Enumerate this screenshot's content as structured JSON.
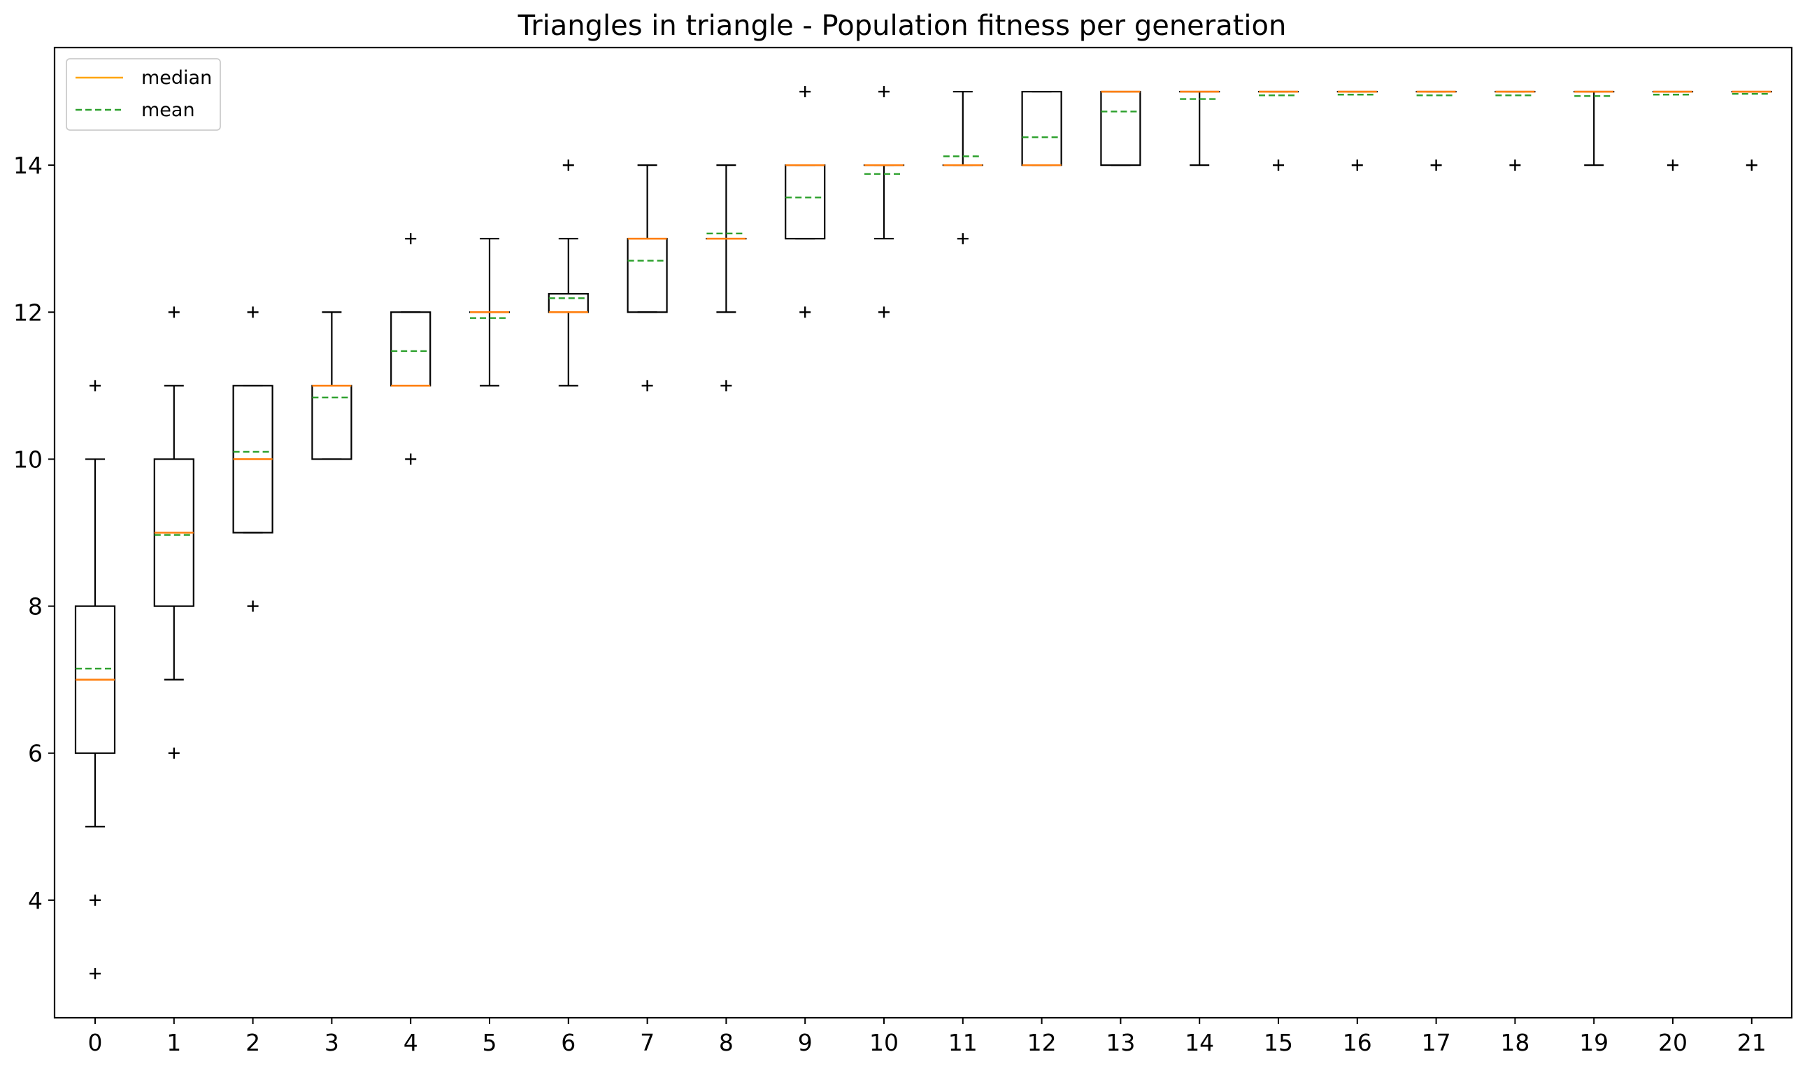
{
  "chart_data": {
    "type": "box",
    "title": "Triangles in triangle - Population fitness per generation",
    "xlabel": "",
    "ylabel": "",
    "categories": [
      "0",
      "1",
      "2",
      "3",
      "4",
      "5",
      "6",
      "7",
      "8",
      "9",
      "10",
      "11",
      "12",
      "13",
      "14",
      "15",
      "16",
      "17",
      "18",
      "19",
      "20",
      "21"
    ],
    "y_ticks": [
      "4",
      "6",
      "8",
      "10",
      "12",
      "14"
    ],
    "ylim": [
      2.4,
      15.6
    ],
    "grid": false,
    "legend": {
      "position": "top-left",
      "entries": [
        {
          "label": "median",
          "color": "#ffa500",
          "style": "solid"
        },
        {
          "label": "mean",
          "color": "#2ca02c",
          "style": "dashed"
        }
      ]
    },
    "colors": {
      "box": "#000000",
      "median": "#ff7f0e",
      "mean": "#2ca02c",
      "flier": "#000000"
    },
    "boxes": [
      {
        "x": "0",
        "whislo": 5,
        "q1": 6,
        "med": 7,
        "q3": 8,
        "whishi": 10,
        "mean": 7.15,
        "fliers": [
          11,
          4,
          3
        ]
      },
      {
        "x": "1",
        "whislo": 7,
        "q1": 8,
        "med": 9,
        "q3": 10,
        "whishi": 11,
        "mean": 8.97,
        "fliers": [
          12,
          6
        ]
      },
      {
        "x": "2",
        "whislo": 9,
        "q1": 9,
        "med": 10,
        "q3": 11,
        "whishi": 11,
        "mean": 10.1,
        "fliers": [
          12,
          8
        ]
      },
      {
        "x": "3",
        "whislo": 10,
        "q1": 10,
        "med": 11,
        "q3": 11,
        "whishi": 12,
        "mean": 10.84,
        "fliers": []
      },
      {
        "x": "4",
        "whislo": 11,
        "q1": 11,
        "med": 11,
        "q3": 12,
        "whishi": 12,
        "mean": 11.47,
        "fliers": [
          13,
          10
        ]
      },
      {
        "x": "5",
        "whislo": 11,
        "q1": 12,
        "med": 12,
        "q3": 12,
        "whishi": 13,
        "mean": 11.92,
        "fliers": []
      },
      {
        "x": "6",
        "whislo": 11,
        "q1": 12,
        "med": 12,
        "q3": 12.25,
        "whishi": 13,
        "mean": 12.19,
        "fliers": [
          14
        ]
      },
      {
        "x": "7",
        "whislo": 12,
        "q1": 12,
        "med": 13,
        "q3": 13,
        "whishi": 14,
        "mean": 12.7,
        "fliers": [
          11
        ]
      },
      {
        "x": "8",
        "whislo": 12,
        "q1": 13,
        "med": 13,
        "q3": 13,
        "whishi": 14,
        "mean": 13.07,
        "fliers": [
          11
        ]
      },
      {
        "x": "9",
        "whislo": 13,
        "q1": 13,
        "med": 14,
        "q3": 14,
        "whishi": 14,
        "mean": 13.56,
        "fliers": [
          15,
          12
        ]
      },
      {
        "x": "10",
        "whislo": 13,
        "q1": 14,
        "med": 14,
        "q3": 14,
        "whishi": 14,
        "mean": 13.88,
        "fliers": [
          15,
          12
        ]
      },
      {
        "x": "11",
        "whislo": 14,
        "q1": 14,
        "med": 14,
        "q3": 14,
        "whishi": 15,
        "mean": 14.12,
        "fliers": [
          13
        ]
      },
      {
        "x": "12",
        "whislo": 14,
        "q1": 14,
        "med": 14,
        "q3": 15,
        "whishi": 15,
        "mean": 14.38,
        "fliers": []
      },
      {
        "x": "13",
        "whislo": 14,
        "q1": 14,
        "med": 15,
        "q3": 15,
        "whishi": 15,
        "mean": 14.73,
        "fliers": []
      },
      {
        "x": "14",
        "whislo": 14,
        "q1": 15,
        "med": 15,
        "q3": 15,
        "whishi": 15,
        "mean": 14.9,
        "fliers": []
      },
      {
        "x": "15",
        "whislo": 15,
        "q1": 15,
        "med": 15,
        "q3": 15,
        "whishi": 15,
        "mean": 14.95,
        "fliers": [
          14
        ]
      },
      {
        "x": "16",
        "whislo": 15,
        "q1": 15,
        "med": 15,
        "q3": 15,
        "whishi": 15,
        "mean": 14.96,
        "fliers": [
          14
        ]
      },
      {
        "x": "17",
        "whislo": 15,
        "q1": 15,
        "med": 15,
        "q3": 15,
        "whishi": 15,
        "mean": 14.95,
        "fliers": [
          14
        ]
      },
      {
        "x": "18",
        "whislo": 15,
        "q1": 15,
        "med": 15,
        "q3": 15,
        "whishi": 15,
        "mean": 14.95,
        "fliers": [
          14
        ]
      },
      {
        "x": "19",
        "whislo": 14,
        "q1": 15,
        "med": 15,
        "q3": 15,
        "whishi": 15,
        "mean": 14.94,
        "fliers": []
      },
      {
        "x": "20",
        "whislo": 15,
        "q1": 15,
        "med": 15,
        "q3": 15,
        "whishi": 15,
        "mean": 14.96,
        "fliers": [
          14
        ]
      },
      {
        "x": "21",
        "whislo": 15,
        "q1": 15,
        "med": 15,
        "q3": 15,
        "whishi": 15,
        "mean": 14.97,
        "fliers": [
          14
        ]
      }
    ]
  }
}
